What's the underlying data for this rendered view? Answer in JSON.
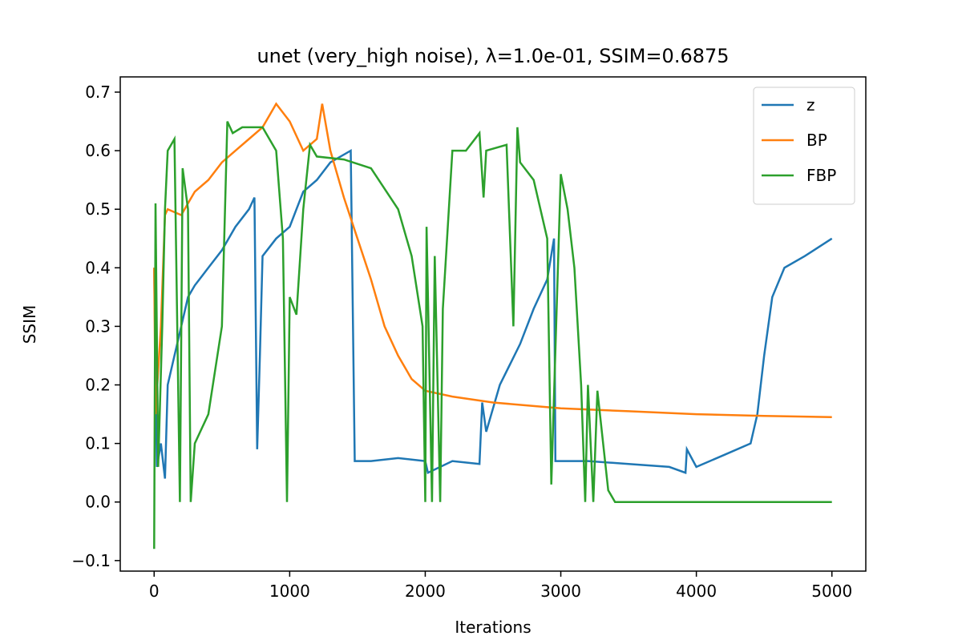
{
  "chart_data": {
    "type": "line",
    "title": "unet (very_high noise), λ=1.0e-01, SSIM=0.6875",
    "xlabel": "Iterations",
    "ylabel": "SSIM",
    "xlim": [
      -250,
      5250
    ],
    "ylim": [
      -0.118,
      0.726
    ],
    "xticks": [
      0,
      1000,
      2000,
      3000,
      4000,
      5000
    ],
    "yticks": [
      {
        "value": -0.1,
        "label": "−0.1"
      },
      {
        "value": 0,
        "label": "0.0"
      },
      0.1,
      0.2,
      0.3,
      0.4,
      0.5,
      0.6,
      0.7
    ],
    "legend": "upper right",
    "series": [
      {
        "name": "z",
        "color": "#1f77b4",
        "x": [
          0,
          20,
          50,
          80,
          100,
          150,
          200,
          250,
          300,
          400,
          500,
          600,
          700,
          740,
          760,
          780,
          800,
          900,
          1000,
          1050,
          1100,
          1200,
          1300,
          1450,
          1480,
          1600,
          1800,
          2000,
          2020,
          2200,
          2400,
          2420,
          2450,
          2550,
          2700,
          2800,
          2900,
          2950,
          2960,
          3200,
          3500,
          3800,
          3920,
          3930,
          4000,
          4200,
          4400,
          4450,
          4500,
          4560,
          4650,
          4800,
          5000
        ],
        "values": [
          0.4,
          0.06,
          0.1,
          0.04,
          0.2,
          0.25,
          0.3,
          0.35,
          0.37,
          0.4,
          0.43,
          0.47,
          0.5,
          0.52,
          0.09,
          0.25,
          0.42,
          0.45,
          0.47,
          0.5,
          0.53,
          0.55,
          0.58,
          0.6,
          0.07,
          0.07,
          0.075,
          0.07,
          0.05,
          0.07,
          0.065,
          0.17,
          0.12,
          0.2,
          0.27,
          0.33,
          0.38,
          0.45,
          0.07,
          0.07,
          0.065,
          0.06,
          0.05,
          0.09,
          0.06,
          0.08,
          0.1,
          0.15,
          0.25,
          0.35,
          0.4,
          0.42,
          0.45
        ]
      },
      {
        "name": "BP",
        "color": "#ff7f0e",
        "x": [
          0,
          10,
          50,
          80,
          100,
          200,
          250,
          300,
          400,
          500,
          600,
          700,
          800,
          900,
          1000,
          1100,
          1200,
          1240,
          1300,
          1400,
          1500,
          1600,
          1700,
          1800,
          1900,
          2000,
          2200,
          2500,
          3000,
          3500,
          4000,
          4500,
          5000
        ],
        "values": [
          0.4,
          0.15,
          0.3,
          0.49,
          0.5,
          0.49,
          0.51,
          0.53,
          0.55,
          0.58,
          0.6,
          0.62,
          0.64,
          0.68,
          0.65,
          0.6,
          0.62,
          0.68,
          0.6,
          0.52,
          0.45,
          0.38,
          0.3,
          0.25,
          0.21,
          0.19,
          0.18,
          0.17,
          0.16,
          0.155,
          0.15,
          0.147,
          0.145
        ]
      },
      {
        "name": "FBP",
        "color": "#2ca02c",
        "x": [
          0,
          10,
          30,
          60,
          80,
          100,
          150,
          190,
          210,
          250,
          270,
          300,
          400,
          500,
          540,
          580,
          650,
          800,
          900,
          950,
          980,
          1000,
          1050,
          1100,
          1150,
          1200,
          1400,
          1600,
          1800,
          1900,
          1980,
          2000,
          2010,
          2050,
          2070,
          2110,
          2130,
          2200,
          2300,
          2400,
          2430,
          2450,
          2600,
          2650,
          2680,
          2700,
          2800,
          2900,
          2930,
          3000,
          3050,
          3100,
          3150,
          3180,
          3200,
          3240,
          3270,
          3350,
          3400,
          5000
        ],
        "values": [
          -0.08,
          0.51,
          0.06,
          0.3,
          0.5,
          0.6,
          0.62,
          0,
          0.57,
          0.5,
          0,
          0.1,
          0.15,
          0.3,
          0.65,
          0.63,
          0.64,
          0.64,
          0.6,
          0.45,
          0,
          0.35,
          0.32,
          0.5,
          0.61,
          0.59,
          0.585,
          0.57,
          0.5,
          0.42,
          0.3,
          0,
          0.47,
          0,
          0.42,
          0,
          0.33,
          0.6,
          0.6,
          0.63,
          0.52,
          0.6,
          0.61,
          0.3,
          0.64,
          0.58,
          0.55,
          0.45,
          0.03,
          0.56,
          0.5,
          0.4,
          0.2,
          0,
          0.2,
          0,
          0.19,
          0.02,
          0,
          0
        ]
      }
    ]
  }
}
